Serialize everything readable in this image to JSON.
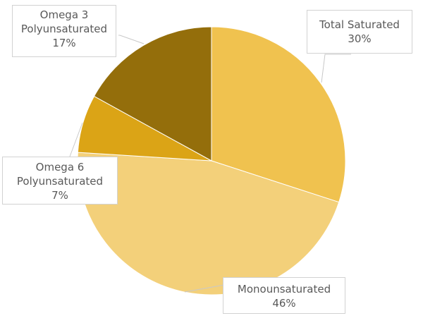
{
  "chart_data": {
    "type": "pie",
    "title": "",
    "start_angle_deg": 0,
    "direction": "clockwise",
    "categories": [
      "Total Saturated",
      "Monounsaturated",
      "Omega 6 Polyunsaturated",
      "Omega 3 Polyunsaturated"
    ],
    "values": [
      30,
      46,
      7,
      17
    ],
    "unit": "%",
    "colors": [
      "#f0c24f",
      "#f3d07a",
      "#dba416",
      "#946e0b"
    ],
    "legend": "none",
    "data_labels": [
      {
        "lines": [
          "Total Saturated",
          "30%"
        ]
      },
      {
        "lines": [
          "Monounsaturated",
          "46%"
        ]
      },
      {
        "lines": [
          "Omega 6",
          "Polyunsaturated",
          "7%"
        ]
      },
      {
        "lines": [
          "Omega 3",
          "Polyunsaturated",
          "17%"
        ]
      }
    ]
  },
  "labels": {
    "saturated": {
      "line1": "Total Saturated",
      "line2": "30%"
    },
    "mono": {
      "line1": "Monounsaturated",
      "line2": "46%"
    },
    "omega6": {
      "line1": "Omega 6",
      "line2": "Polyunsaturated",
      "line3": "7%"
    },
    "omega3": {
      "line1": "Omega 3",
      "line2": "Polyunsaturated",
      "line3": "17%"
    }
  }
}
